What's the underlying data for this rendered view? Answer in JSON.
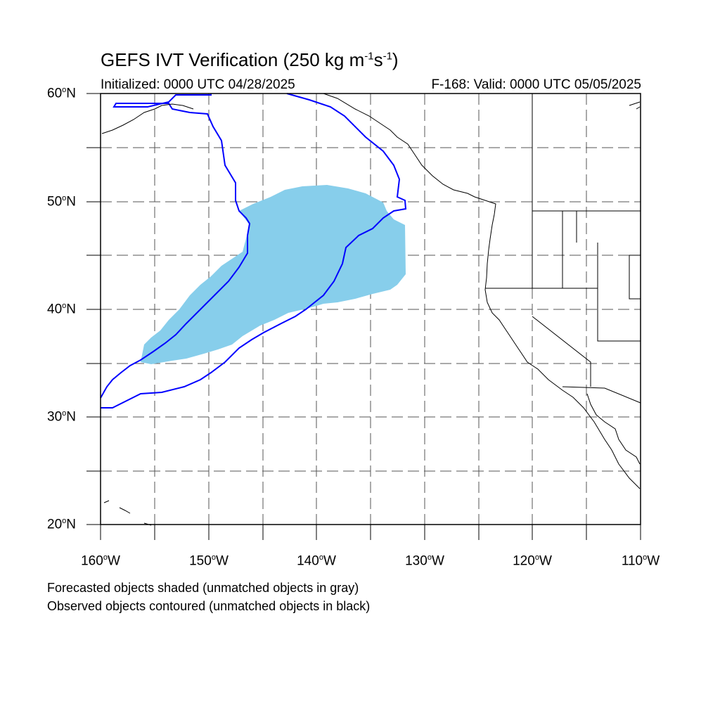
{
  "title": {
    "main": "GEFS IVT Verification (250 kg m",
    "exp1": "-1",
    "s": "s",
    "exp2": "-1",
    "close": ")"
  },
  "initialized": "Initialized: 0000 UTC 04/28/2025",
  "valid": "F-168: Valid: 0000 UTC 05/05/2025",
  "map": {
    "projection": "cylindrical-equidistant",
    "lon_range": [
      -160,
      -110
    ],
    "lat_range": [
      20,
      60
    ],
    "lat_labels": [
      {
        "value": "60",
        "deg": "o",
        "hemi": "N"
      },
      {
        "value": "50",
        "deg": "o",
        "hemi": "N"
      },
      {
        "value": "40",
        "deg": "o",
        "hemi": "N"
      },
      {
        "value": "30",
        "deg": "o",
        "hemi": "N"
      },
      {
        "value": "20",
        "deg": "o",
        "hemi": "N"
      }
    ],
    "lon_labels": [
      {
        "value": "160",
        "deg": "o",
        "hemi": "W"
      },
      {
        "value": "150",
        "deg": "o",
        "hemi": "W"
      },
      {
        "value": "140",
        "deg": "o",
        "hemi": "W"
      },
      {
        "value": "130",
        "deg": "o",
        "hemi": "W"
      },
      {
        "value": "120",
        "deg": "o",
        "hemi": "W"
      },
      {
        "value": "110",
        "deg": "o",
        "hemi": "W"
      }
    ],
    "grid": "dashed every 5 degrees",
    "colors": {
      "forecast_fill": "#87ceeb",
      "observed_contour": "#0000ff",
      "coastline": "#000000",
      "grid": "#555555"
    }
  },
  "notes": [
    "Forecasted objects shaded (unmatched objects in gray)",
    "Observed objects contoured (unmatched objects in black)"
  ]
}
